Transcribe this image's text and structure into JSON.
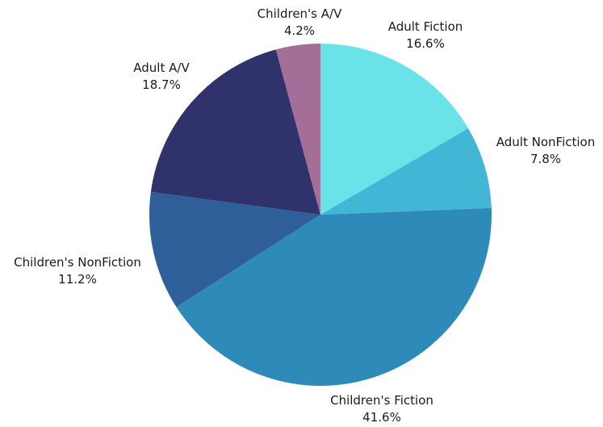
{
  "chart_data": {
    "type": "pie",
    "title": "",
    "slices": [
      {
        "label": "Adult Fiction",
        "value": 16.6,
        "display": "16.6%",
        "color": "#69e2e8"
      },
      {
        "label": "Adult NonFiction",
        "value": 7.8,
        "display": "7.8%",
        "color": "#43b6d6"
      },
      {
        "label": "Children's Fiction",
        "value": 41.6,
        "display": "41.6%",
        "color": "#2e8ab8"
      },
      {
        "label": "Children's NonFiction",
        "value": 11.2,
        "display": "11.2%",
        "color": "#2e5f98"
      },
      {
        "label": "Adult A/V",
        "value": 18.7,
        "display": "18.7%",
        "color": "#30336b"
      },
      {
        "label": "Children's A/V",
        "value": 4.2,
        "display": "4.2%",
        "color": "#a36f98"
      }
    ],
    "start_angle": "12 o'clock",
    "direction": "clockwise",
    "legend": "none"
  }
}
